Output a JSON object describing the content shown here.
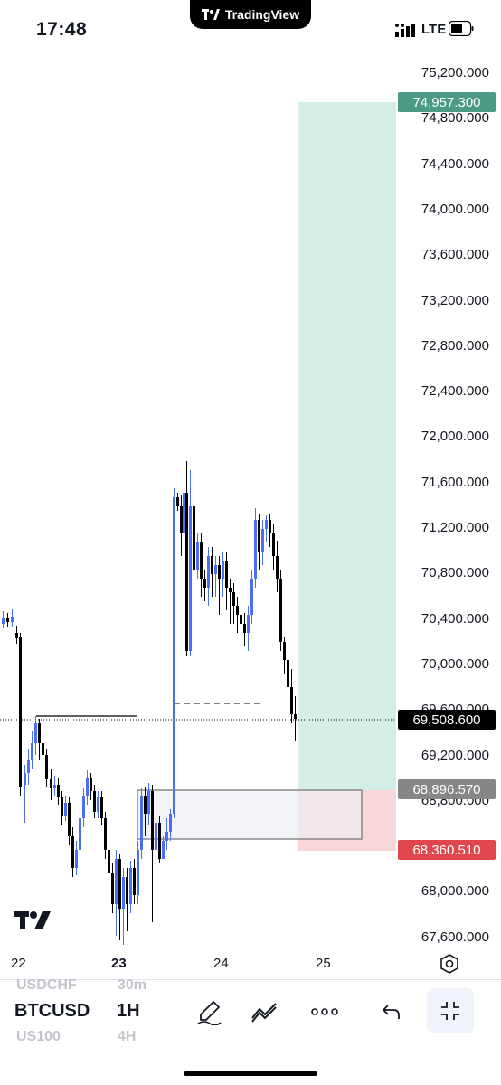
{
  "status_bar": {
    "time": "17:48",
    "network": "LTE"
  },
  "app": {
    "name": "TradingView"
  },
  "chart": {
    "symbol": "BTCUSD",
    "interval": "1H",
    "price_axis": [
      "75,200.000",
      "74,800.000",
      "74,400.000",
      "74,000.000",
      "73,600.000",
      "73,200.000",
      "72,800.000",
      "72,400.000",
      "72,000.000",
      "71,600.000",
      "71,200.000",
      "70,800.000",
      "70,400.000",
      "70,000.000",
      "69,600.000",
      "69,200.000",
      "68,800.000",
      "68,400.000",
      "68,000.000",
      "67,600.000"
    ],
    "badges": {
      "target": "74,957.300",
      "current": "69,508.600",
      "entry": "68,896.570",
      "stop": "68,360.510"
    },
    "time_axis": [
      "22",
      "23",
      "24",
      "25"
    ],
    "colors": {
      "up": "#4c6ef5",
      "down": "#000000",
      "profit_zone": "#d4ede6",
      "loss_zone": "#f8d7da",
      "target_badge": "#4a9a86",
      "entry_badge": "#868686",
      "stop_badge": "#e0474c",
      "current_badge": "#000000"
    }
  },
  "bottom_bar": {
    "ghost_symbols": [
      "USDCHF",
      "US100"
    ],
    "ghost_intervals": [
      "30m",
      "4H"
    ],
    "tools": [
      "brush-icon",
      "trend-line-icon",
      "more-icon",
      "undo-icon",
      "collapse-icon"
    ]
  }
}
